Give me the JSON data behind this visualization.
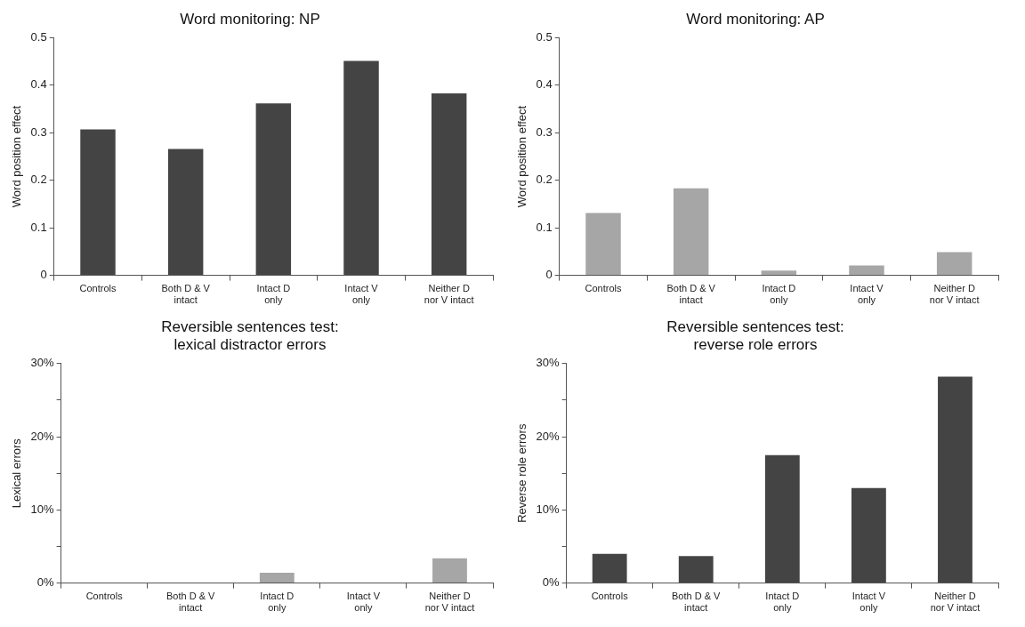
{
  "chart_data": [
    {
      "type": "bar",
      "title": "Word monitoring: NP",
      "ylabel": "Word position effect",
      "categories": [
        "Controls",
        "Both D & V intact",
        "Intact D only",
        "Intact V only",
        "Neither D nor V intact"
      ],
      "values": [
        0.307,
        0.266,
        0.362,
        0.451,
        0.383
      ],
      "color": "#444444",
      "ylim": [
        0,
        0.5
      ],
      "yticks": [
        0,
        0.1,
        0.2,
        0.3,
        0.4,
        0.5
      ]
    },
    {
      "type": "bar",
      "title": "Word monitoring: AP",
      "ylabel": "Word position effect",
      "categories": [
        "Controls",
        "Both D & V intact",
        "Intact D only",
        "Intact V only",
        "Neither D nor V intact"
      ],
      "values": [
        0.131,
        0.183,
        0.01,
        0.021,
        0.049
      ],
      "color": "#a6a6a6",
      "ylim": [
        0,
        0.5
      ],
      "yticks": [
        0,
        0.1,
        0.2,
        0.3,
        0.4,
        0.5
      ]
    },
    {
      "type": "bar",
      "title": "Reversible sentences test:\nlexical distractor errors",
      "ylabel": "Lexical errors",
      "categories": [
        "Controls",
        "Both D & V intact",
        "Intact D only",
        "Intact V only",
        "Neither D nor V intact"
      ],
      "values": [
        0,
        0,
        1.4,
        0,
        3.4
      ],
      "color": "#a6a6a6",
      "ylim": [
        0,
        30
      ],
      "yticks": [
        {
          "value": 0,
          "label": "0%"
        },
        {
          "value": 5,
          "label": null
        },
        {
          "value": 10,
          "label": "10%"
        },
        {
          "value": 15,
          "label": null
        },
        {
          "value": 20,
          "label": "20%"
        },
        {
          "value": 25,
          "label": null
        },
        {
          "value": 30,
          "label": "30%"
        }
      ]
    },
    {
      "type": "bar",
      "title": "Reversible sentences test:\nreverse role errors",
      "ylabel": "Reverse role errors",
      "categories": [
        "Controls",
        "Both D & V intact",
        "Intact D only",
        "Intact V only",
        "Neither D nor V intact"
      ],
      "values": [
        4.0,
        3.7,
        17.5,
        13.0,
        28.2
      ],
      "color": "#444444",
      "ylim": [
        0,
        30
      ],
      "yticks": [
        {
          "value": 0,
          "label": "0%"
        },
        {
          "value": 5,
          "label": null
        },
        {
          "value": 10,
          "label": "10%"
        },
        {
          "value": 15,
          "label": null
        },
        {
          "value": 20,
          "label": "20%"
        },
        {
          "value": 25,
          "label": null
        },
        {
          "value": 30,
          "label": "30%"
        }
      ]
    }
  ]
}
